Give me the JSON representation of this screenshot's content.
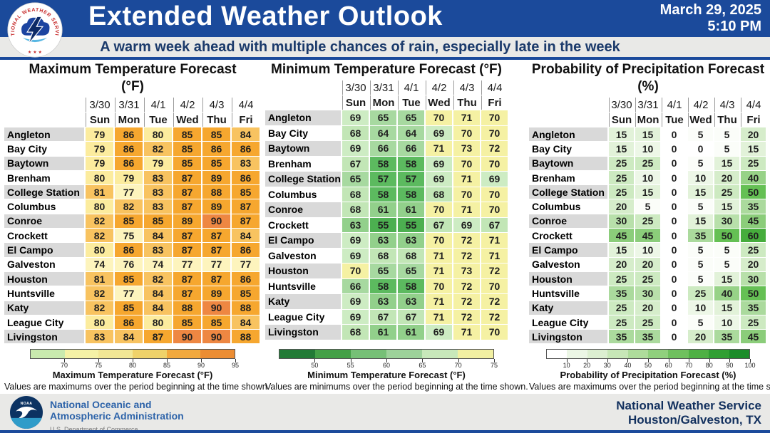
{
  "header": {
    "title": "Extended Weather Outlook",
    "date": "March 29, 2025",
    "time": "5:10 PM",
    "subtitle": "A warm week ahead with multiple chances of rain, especially late in the week",
    "nws_logo_text": "NATIONAL WEATHER SERVICE",
    "accent_color": "#1b4a9b"
  },
  "columns": {
    "dates": [
      "3/30",
      "3/31",
      "4/1",
      "4/2",
      "4/3",
      "4/4"
    ],
    "days": [
      "Sun",
      "Mon",
      "Tue",
      "Wed",
      "Thu",
      "Fri"
    ]
  },
  "cities": [
    "Angleton",
    "Bay City",
    "Baytown",
    "Brenham",
    "College Station",
    "Columbus",
    "Conroe",
    "Crockett",
    "El Campo",
    "Galveston",
    "Houston",
    "Huntsville",
    "Katy",
    "League City",
    "Livingston"
  ],
  "chart_data": [
    {
      "type": "heatmap",
      "key": "max-temp",
      "title_line1": "Maximum Temperature Forecast",
      "title_line2": "(°F)",
      "rows": [
        "Angleton",
        "Bay City",
        "Baytown",
        "Brenham",
        "College Station",
        "Columbus",
        "Conroe",
        "Crockett",
        "El Campo",
        "Galveston",
        "Houston",
        "Huntsville",
        "Katy",
        "League City",
        "Livingston"
      ],
      "values": [
        [
          79,
          86,
          80,
          85,
          85,
          84
        ],
        [
          79,
          86,
          82,
          85,
          86,
          86
        ],
        [
          79,
          86,
          79,
          85,
          85,
          83
        ],
        [
          80,
          79,
          83,
          87,
          89,
          86
        ],
        [
          81,
          77,
          83,
          87,
          88,
          85
        ],
        [
          80,
          82,
          83,
          87,
          89,
          87
        ],
        [
          82,
          85,
          85,
          89,
          90,
          87
        ],
        [
          82,
          75,
          84,
          87,
          87,
          84
        ],
        [
          80,
          86,
          83,
          87,
          87,
          86
        ],
        [
          74,
          76,
          74,
          77,
          77,
          77
        ],
        [
          81,
          85,
          82,
          87,
          87,
          86
        ],
        [
          82,
          77,
          84,
          87,
          89,
          85
        ],
        [
          82,
          85,
          84,
          88,
          90,
          88
        ],
        [
          80,
          86,
          80,
          85,
          85,
          84
        ],
        [
          83,
          84,
          87,
          90,
          90,
          88
        ]
      ],
      "color_bins": [
        {
          "min": 90,
          "color": "#ee8742"
        },
        {
          "min": 85,
          "color": "#f6a72f"
        },
        {
          "min": 81,
          "color": "#f8c360"
        },
        {
          "min": 78,
          "color": "#fcec9e"
        },
        {
          "min": 0,
          "color": "#fdf4bd"
        }
      ],
      "legend": {
        "min": 65,
        "max": 95,
        "ticks": [
          70,
          75,
          80,
          85,
          90,
          95
        ],
        "segments": [
          {
            "from": 65,
            "to": 70,
            "color": "#c9eaae"
          },
          {
            "from": 70,
            "to": 75,
            "color": "#f5f2a6"
          },
          {
            "from": 75,
            "to": 80,
            "color": "#f2e795"
          },
          {
            "from": 80,
            "to": 85,
            "color": "#efd26a"
          },
          {
            "from": 85,
            "to": 90,
            "color": "#f2a93d"
          },
          {
            "from": 90,
            "to": 95,
            "color": "#ec8d33"
          }
        ],
        "label": "Maximum Temperature Forecast (°F)"
      },
      "caption": "Values are maximums over the period beginning at the time shown."
    },
    {
      "type": "heatmap",
      "key": "min-temp",
      "title_line1": "Minimum Temperature Forecast (°F)",
      "title_line2": "",
      "rows": [
        "Angleton",
        "Bay City",
        "Baytown",
        "Brenham",
        "College Station",
        "Columbus",
        "Conroe",
        "Crockett",
        "El Campo",
        "Galveston",
        "Houston",
        "Huntsville",
        "Katy",
        "League City",
        "Livingston"
      ],
      "values": [
        [
          69,
          65,
          65,
          70,
          71,
          70
        ],
        [
          68,
          64,
          64,
          69,
          70,
          70
        ],
        [
          69,
          66,
          66,
          71,
          73,
          72
        ],
        [
          67,
          58,
          58,
          69,
          70,
          70
        ],
        [
          65,
          57,
          57,
          69,
          71,
          69
        ],
        [
          68,
          58,
          58,
          68,
          70,
          70
        ],
        [
          68,
          61,
          61,
          70,
          71,
          70
        ],
        [
          63,
          55,
          55,
          67,
          69,
          67
        ],
        [
          69,
          63,
          63,
          70,
          72,
          71
        ],
        [
          69,
          68,
          68,
          71,
          72,
          71
        ],
        [
          70,
          65,
          65,
          71,
          73,
          72
        ],
        [
          66,
          58,
          58,
          70,
          72,
          70
        ],
        [
          69,
          63,
          63,
          71,
          72,
          72
        ],
        [
          69,
          67,
          67,
          71,
          72,
          72
        ],
        [
          68,
          61,
          61,
          69,
          71,
          70
        ]
      ],
      "color_bins": [
        {
          "min": 70,
          "color": "#f5f1a3"
        },
        {
          "min": 69,
          "color": "#cdecc3"
        },
        {
          "min": 67,
          "color": "#c2e6b6"
        },
        {
          "min": 64,
          "color": "#a7d9a0"
        },
        {
          "min": 61,
          "color": "#92d08b"
        },
        {
          "min": 56,
          "color": "#5cba5f"
        },
        {
          "min": 0,
          "color": "#4caf50"
        }
      ],
      "legend": {
        "min": 45,
        "max": 75,
        "ticks": [
          50,
          55,
          60,
          65,
          70,
          75
        ],
        "segments": [
          {
            "from": 45,
            "to": 50,
            "color": "#227a36"
          },
          {
            "from": 50,
            "to": 55,
            "color": "#44a047"
          },
          {
            "from": 55,
            "to": 60,
            "color": "#76c076"
          },
          {
            "from": 60,
            "to": 65,
            "color": "#9dd29a"
          },
          {
            "from": 65,
            "to": 70,
            "color": "#c8e8ba"
          },
          {
            "from": 70,
            "to": 75,
            "color": "#f2f0a2"
          }
        ],
        "label": "Minimum Temperature Forecast (°F)"
      },
      "caption": "Values are minimums over the period beginning at the time shown."
    },
    {
      "type": "heatmap",
      "key": "pop",
      "title_line1": "Probability of Precipitation Forecast",
      "title_line2": "(%)",
      "rows": [
        "Angleton",
        "Bay City",
        "Baytown",
        "Brenham",
        "College Station",
        "Columbus",
        "Conroe",
        "Crockett",
        "El Campo",
        "Galveston",
        "Houston",
        "Huntsville",
        "Katy",
        "League City",
        "Livingston"
      ],
      "values": [
        [
          15,
          15,
          0,
          5,
          5,
          20
        ],
        [
          15,
          10,
          0,
          0,
          5,
          15
        ],
        [
          25,
          25,
          0,
          5,
          15,
          25
        ],
        [
          25,
          10,
          0,
          10,
          20,
          40
        ],
        [
          25,
          15,
          0,
          15,
          25,
          50
        ],
        [
          20,
          5,
          0,
          5,
          15,
          35
        ],
        [
          30,
          25,
          0,
          15,
          30,
          45
        ],
        [
          45,
          45,
          0,
          35,
          50,
          60
        ],
        [
          15,
          10,
          0,
          5,
          5,
          25
        ],
        [
          20,
          20,
          0,
          5,
          5,
          20
        ],
        [
          25,
          25,
          0,
          5,
          15,
          30
        ],
        [
          35,
          30,
          0,
          25,
          40,
          50
        ],
        [
          25,
          20,
          0,
          10,
          15,
          35
        ],
        [
          25,
          25,
          0,
          5,
          10,
          25
        ],
        [
          35,
          35,
          0,
          20,
          35,
          45
        ]
      ],
      "color_bins": [
        {
          "min": 60,
          "color": "#46ad3c"
        },
        {
          "min": 50,
          "color": "#65c054"
        },
        {
          "min": 45,
          "color": "#8bcd7a"
        },
        {
          "min": 40,
          "color": "#97d287"
        },
        {
          "min": 35,
          "color": "#abda9d"
        },
        {
          "min": 30,
          "color": "#b8e0aa"
        },
        {
          "min": 25,
          "color": "#cdeac1"
        },
        {
          "min": 20,
          "color": "#d6edcb"
        },
        {
          "min": 15,
          "color": "#e2f2d9"
        },
        {
          "min": 10,
          "color": "#edf7e7"
        },
        {
          "min": 1,
          "color": "#fbfdf9"
        },
        {
          "min": 0,
          "color": "#ffffff"
        }
      ],
      "legend": {
        "min": 0,
        "max": 100,
        "ticks": [
          10,
          20,
          30,
          40,
          50,
          60,
          70,
          80,
          90,
          100
        ],
        "segments": [
          {
            "from": 0,
            "to": 10,
            "color": "#ffffff"
          },
          {
            "from": 10,
            "to": 20,
            "color": "#ebf6e5"
          },
          {
            "from": 20,
            "to": 30,
            "color": "#dcefd1"
          },
          {
            "from": 30,
            "to": 40,
            "color": "#c7e7b7"
          },
          {
            "from": 40,
            "to": 50,
            "color": "#aedc9b"
          },
          {
            "from": 50,
            "to": 60,
            "color": "#90d07d"
          },
          {
            "from": 60,
            "to": 70,
            "color": "#6fc05e"
          },
          {
            "from": 70,
            "to": 80,
            "color": "#4fb044"
          },
          {
            "from": 80,
            "to": 90,
            "color": "#319f33"
          },
          {
            "from": 90,
            "to": 100,
            "color": "#1b8c29"
          }
        ],
        "label": "Probability of Precipitation Forecast (%)"
      },
      "caption": "Values are maximums over the period beginning at the time shown."
    }
  ],
  "footer": {
    "noaa_logo_text": "NOAA",
    "noaa_line1": "National Oceanic and",
    "noaa_line2": "Atmospheric Administration",
    "noaa_line3": "U.S. Department of Commerce",
    "nws_line1": "National Weather Service",
    "nws_line2": "Houston/Galveston, TX"
  }
}
